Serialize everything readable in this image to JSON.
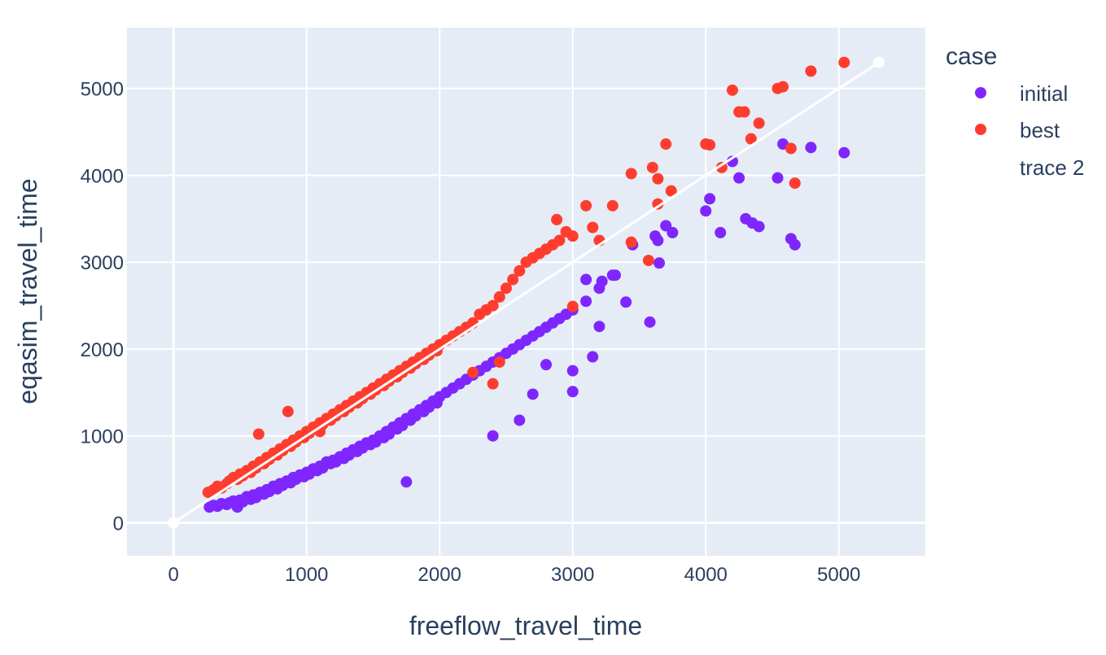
{
  "chart_data": {
    "type": "scatter",
    "title": "",
    "xlabel": "freeflow_travel_time",
    "ylabel": "eqasim_travel_time",
    "xlim": [
      -350,
      5650
    ],
    "ylim": [
      -380,
      5700
    ],
    "xticks": [
      0,
      1000,
      2000,
      3000,
      4000,
      5000
    ],
    "yticks": [
      0,
      1000,
      2000,
      3000,
      4000,
      5000
    ],
    "grid": true,
    "plot_background": "#e5ecf6",
    "legend": {
      "title": "case",
      "placement": "right",
      "entries": [
        "initial",
        "best",
        "trace 2"
      ]
    },
    "series": [
      {
        "name": "initial",
        "color": "#7f26ff",
        "points": [
          [
            270,
            180
          ],
          [
            300,
            200
          ],
          [
            330,
            190
          ],
          [
            360,
            220
          ],
          [
            400,
            210
          ],
          [
            420,
            230
          ],
          [
            450,
            250
          ],
          [
            480,
            180
          ],
          [
            500,
            260
          ],
          [
            520,
            240
          ],
          [
            550,
            300
          ],
          [
            580,
            270
          ],
          [
            600,
            320
          ],
          [
            620,
            290
          ],
          [
            650,
            350
          ],
          [
            680,
            330
          ],
          [
            700,
            380
          ],
          [
            720,
            360
          ],
          [
            750,
            420
          ],
          [
            780,
            390
          ],
          [
            800,
            450
          ],
          [
            820,
            430
          ],
          [
            850,
            480
          ],
          [
            880,
            460
          ],
          [
            900,
            520
          ],
          [
            920,
            500
          ],
          [
            950,
            550
          ],
          [
            980,
            530
          ],
          [
            1000,
            580
          ],
          [
            1020,
            560
          ],
          [
            1050,
            620
          ],
          [
            1080,
            600
          ],
          [
            1100,
            650
          ],
          [
            1120,
            630
          ],
          [
            1150,
            700
          ],
          [
            1180,
            680
          ],
          [
            1200,
            720
          ],
          [
            1220,
            700
          ],
          [
            1250,
            760
          ],
          [
            1280,
            740
          ],
          [
            1300,
            800
          ],
          [
            1320,
            780
          ],
          [
            1350,
            840
          ],
          [
            1380,
            820
          ],
          [
            1400,
            880
          ],
          [
            1420,
            860
          ],
          [
            1450,
            920
          ],
          [
            1480,
            900
          ],
          [
            1500,
            950
          ],
          [
            1520,
            930
          ],
          [
            1550,
            1000
          ],
          [
            1580,
            980
          ],
          [
            1600,
            1050
          ],
          [
            1620,
            1020
          ],
          [
            1650,
            1100
          ],
          [
            1680,
            1080
          ],
          [
            1700,
            1150
          ],
          [
            1720,
            1120
          ],
          [
            1750,
            1200
          ],
          [
            1780,
            1180
          ],
          [
            1800,
            1250
          ],
          [
            1820,
            1230
          ],
          [
            1850,
            1300
          ],
          [
            1880,
            1280
          ],
          [
            1900,
            1350
          ],
          [
            1920,
            1330
          ],
          [
            1950,
            1400
          ],
          [
            1980,
            1380
          ],
          [
            2000,
            1450
          ],
          [
            2050,
            1500
          ],
          [
            2100,
            1550
          ],
          [
            2150,
            1600
          ],
          [
            2200,
            1650
          ],
          [
            2250,
            1700
          ],
          [
            2300,
            1750
          ],
          [
            2350,
            1800
          ],
          [
            2400,
            1850
          ],
          [
            2450,
            1900
          ],
          [
            2500,
            1950
          ],
          [
            2550,
            2000
          ],
          [
            2600,
            2050
          ],
          [
            2650,
            2100
          ],
          [
            2700,
            2150
          ],
          [
            2750,
            2200
          ],
          [
            2800,
            2250
          ],
          [
            2850,
            2300
          ],
          [
            2900,
            2350
          ],
          [
            2950,
            2400
          ],
          [
            3000,
            2450
          ],
          [
            3100,
            2550
          ],
          [
            3200,
            2700
          ],
          [
            3300,
            2850
          ],
          [
            1750,
            470
          ],
          [
            2400,
            1000
          ],
          [
            2600,
            1180
          ],
          [
            2700,
            1480
          ],
          [
            2800,
            1820
          ],
          [
            3000,
            1510
          ],
          [
            3000,
            1750
          ],
          [
            3150,
            1910
          ],
          [
            3200,
            2260
          ],
          [
            3400,
            2540
          ],
          [
            3580,
            2310
          ],
          [
            3650,
            2990
          ],
          [
            3700,
            3420
          ],
          [
            3750,
            3340
          ],
          [
            3620,
            3300
          ],
          [
            3640,
            3250
          ],
          [
            4000,
            3590
          ],
          [
            4030,
            3730
          ],
          [
            4110,
            3340
          ],
          [
            4200,
            4160
          ],
          [
            4250,
            3970
          ],
          [
            4300,
            3500
          ],
          [
            4350,
            3450
          ],
          [
            4400,
            3410
          ],
          [
            4540,
            3970
          ],
          [
            4580,
            4360
          ],
          [
            4640,
            3270
          ],
          [
            4670,
            3200
          ],
          [
            4790,
            4320
          ],
          [
            5040,
            4260
          ],
          [
            3450,
            3200
          ],
          [
            3320,
            2850
          ],
          [
            3220,
            2780
          ],
          [
            3100,
            2800
          ]
        ]
      },
      {
        "name": "best",
        "color": "#ff3c2e",
        "points": [
          [
            260,
            350
          ],
          [
            300,
            380
          ],
          [
            330,
            420
          ],
          [
            360,
            400
          ],
          [
            400,
            450
          ],
          [
            420,
            480
          ],
          [
            450,
            520
          ],
          [
            480,
            500
          ],
          [
            500,
            560
          ],
          [
            520,
            540
          ],
          [
            550,
            600
          ],
          [
            580,
            580
          ],
          [
            600,
            650
          ],
          [
            620,
            630
          ],
          [
            650,
            700
          ],
          [
            680,
            680
          ],
          [
            700,
            750
          ],
          [
            720,
            730
          ],
          [
            750,
            800
          ],
          [
            780,
            780
          ],
          [
            800,
            850
          ],
          [
            820,
            830
          ],
          [
            850,
            900
          ],
          [
            880,
            880
          ],
          [
            900,
            950
          ],
          [
            920,
            930
          ],
          [
            950,
            1000
          ],
          [
            980,
            980
          ],
          [
            1000,
            1050
          ],
          [
            1020,
            1030
          ],
          [
            1050,
            1100
          ],
          [
            1080,
            1080
          ],
          [
            1100,
            1150
          ],
          [
            1120,
            1130
          ],
          [
            1150,
            1200
          ],
          [
            1180,
            1180
          ],
          [
            1200,
            1250
          ],
          [
            1220,
            1230
          ],
          [
            1250,
            1300
          ],
          [
            1280,
            1280
          ],
          [
            1300,
            1350
          ],
          [
            1320,
            1330
          ],
          [
            1350,
            1400
          ],
          [
            1380,
            1380
          ],
          [
            1400,
            1450
          ],
          [
            1420,
            1430
          ],
          [
            1450,
            1500
          ],
          [
            1480,
            1480
          ],
          [
            1500,
            1550
          ],
          [
            1520,
            1530
          ],
          [
            1550,
            1600
          ],
          [
            1580,
            1580
          ],
          [
            1600,
            1650
          ],
          [
            1620,
            1630
          ],
          [
            1650,
            1700
          ],
          [
            1680,
            1680
          ],
          [
            1700,
            1750
          ],
          [
            1720,
            1730
          ],
          [
            1750,
            1800
          ],
          [
            1780,
            1780
          ],
          [
            1800,
            1850
          ],
          [
            1820,
            1830
          ],
          [
            1850,
            1900
          ],
          [
            1880,
            1880
          ],
          [
            1900,
            1950
          ],
          [
            1920,
            1930
          ],
          [
            1950,
            2000
          ],
          [
            1980,
            1980
          ],
          [
            2000,
            2050
          ],
          [
            2050,
            2100
          ],
          [
            2100,
            2150
          ],
          [
            2150,
            2200
          ],
          [
            2200,
            2250
          ],
          [
            2250,
            2300
          ],
          [
            2300,
            2400
          ],
          [
            2350,
            2450
          ],
          [
            2400,
            2500
          ],
          [
            2450,
            2600
          ],
          [
            2500,
            2700
          ],
          [
            2550,
            2800
          ],
          [
            2600,
            2900
          ],
          [
            2650,
            3000
          ],
          [
            2700,
            3050
          ],
          [
            2750,
            3100
          ],
          [
            2800,
            3150
          ],
          [
            2850,
            3200
          ],
          [
            2900,
            3250
          ],
          [
            2950,
            3350
          ],
          [
            3000,
            3300
          ],
          [
            3100,
            3650
          ],
          [
            3150,
            3400
          ],
          [
            3200,
            3250
          ],
          [
            3300,
            3650
          ],
          [
            3440,
            4020
          ],
          [
            3600,
            4090
          ],
          [
            3640,
            3960
          ],
          [
            3740,
            3820
          ],
          [
            3700,
            4360
          ],
          [
            3640,
            3670
          ],
          [
            3440,
            3230
          ],
          [
            3570,
            3020
          ],
          [
            3000,
            2490
          ],
          [
            2880,
            3490
          ],
          [
            4000,
            4360
          ],
          [
            4030,
            4350
          ],
          [
            4120,
            4090
          ],
          [
            4200,
            4980
          ],
          [
            4250,
            4730
          ],
          [
            4290,
            4730
          ],
          [
            4340,
            4420
          ],
          [
            4400,
            4600
          ],
          [
            4540,
            5000
          ],
          [
            4580,
            5020
          ],
          [
            4640,
            4310
          ],
          [
            4670,
            3910
          ],
          [
            4790,
            5200
          ],
          [
            5040,
            5300
          ],
          [
            860,
            1280
          ],
          [
            640,
            1020
          ],
          [
            2400,
            1600
          ],
          [
            2450,
            1850
          ],
          [
            2250,
            1730
          ],
          [
            1100,
            1050
          ]
        ]
      }
    ],
    "line_series": {
      "name": "trace 2",
      "color": "#ffffff",
      "points": [
        [
          0,
          0
        ],
        [
          5300,
          5300
        ]
      ]
    }
  }
}
